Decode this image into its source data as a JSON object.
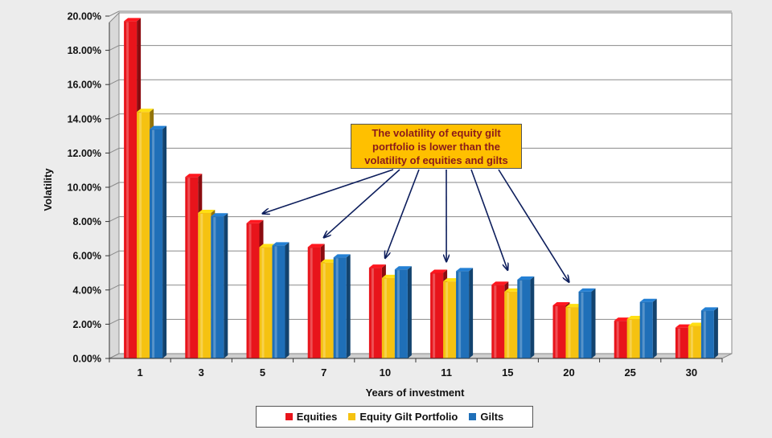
{
  "chart_data": {
    "type": "bar",
    "categories": [
      "1",
      "3",
      "5",
      "7",
      "10",
      "11",
      "15",
      "20",
      "25",
      "30"
    ],
    "series": [
      {
        "name": "Equities",
        "color": "#e8141b",
        "values": [
          19.7,
          10.6,
          7.9,
          6.5,
          5.3,
          5.0,
          4.3,
          3.1,
          2.2,
          1.8
        ]
      },
      {
        "name": "Equity Gilt Portfolio",
        "color": "#f5c211",
        "values": [
          14.4,
          8.5,
          6.5,
          5.6,
          4.7,
          4.5,
          3.9,
          3.0,
          2.3,
          1.9
        ]
      },
      {
        "name": "Gilts",
        "color": "#1f6fb8",
        "values": [
          13.4,
          8.3,
          6.6,
          5.9,
          5.2,
          5.1,
          4.6,
          3.9,
          3.3,
          2.8
        ]
      }
    ],
    "xlabel": "Years of investment",
    "ylabel": "Volatility",
    "ylim": [
      0,
      20
    ],
    "yticks": [
      "0.00%",
      "2.00%",
      "4.00%",
      "6.00%",
      "8.00%",
      "10.00%",
      "12.00%",
      "14.00%",
      "16.00%",
      "18.00%",
      "20.00%"
    ],
    "grid": true,
    "legend_position": "bottom",
    "annotation": {
      "text": "The volatility of equity gilt portfolio is lower than the volatility of equities and gilts",
      "points_to": [
        "5",
        "7",
        "10",
        "11",
        "15",
        "20"
      ]
    }
  }
}
